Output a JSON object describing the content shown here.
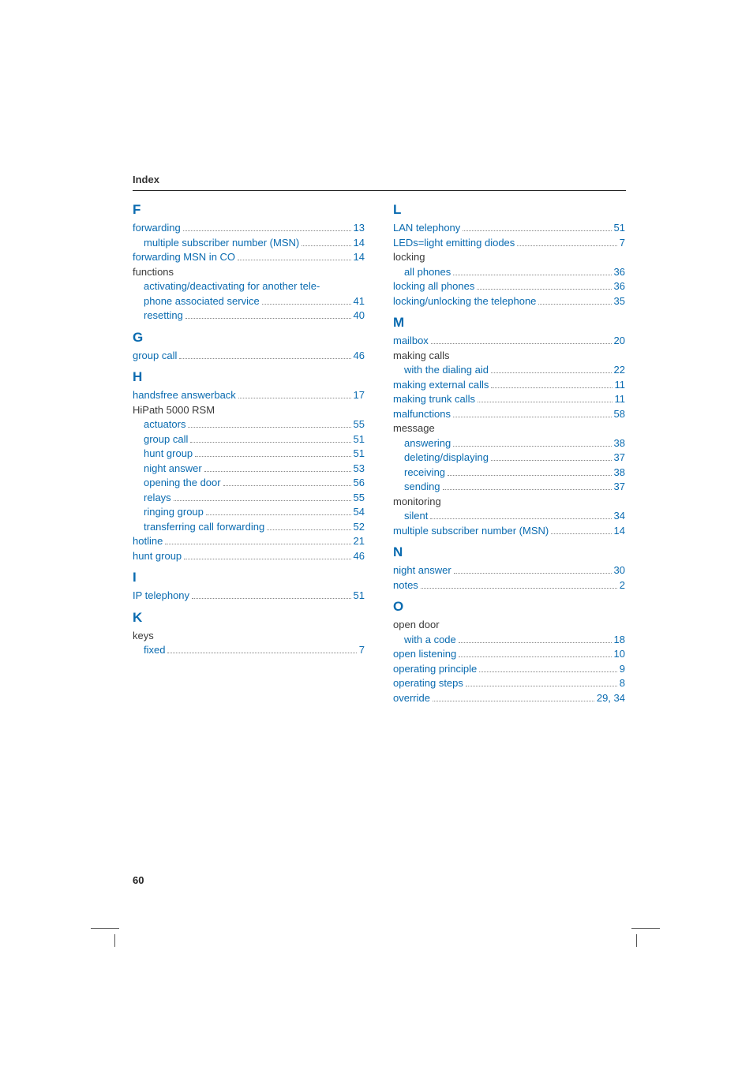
{
  "header": {
    "title": "Index"
  },
  "page_number": "60",
  "colors": {
    "accent": "#0a6bb0",
    "text": "#3a3a3a",
    "rule": "#222222",
    "dots": "#888888",
    "background": "#ffffff"
  },
  "typography": {
    "body_fontsize_pt": 10,
    "letter_fontsize_pt": 13,
    "font_family": "Arial"
  },
  "left_sections": [
    {
      "letter": "F",
      "entries": [
        {
          "label": "forwarding",
          "page": "13",
          "link": true
        },
        {
          "label": "multiple subscriber number (MSN)",
          "page": "14",
          "sub": true,
          "link": true
        },
        {
          "label": "forwarding MSN in CO",
          "page": "14",
          "link": true
        },
        {
          "label": "functions",
          "nopage": true
        },
        {
          "label": "activating/deactivating for another telephone associated service",
          "page": "41",
          "sub": true,
          "wrap": true,
          "link": true
        },
        {
          "label": "resetting",
          "page": "40",
          "sub": true,
          "link": true
        }
      ]
    },
    {
      "letter": "G",
      "entries": [
        {
          "label": "group call",
          "page": "46",
          "link": true
        }
      ]
    },
    {
      "letter": "H",
      "entries": [
        {
          "label": "handsfree answerback",
          "page": "17",
          "link": true
        },
        {
          "label": "HiPath 5000 RSM",
          "nopage": true
        },
        {
          "label": "actuators",
          "page": "55",
          "sub": true,
          "link": true
        },
        {
          "label": "group call",
          "page": "51",
          "sub": true,
          "link": true
        },
        {
          "label": "hunt group",
          "page": "51",
          "sub": true,
          "link": true
        },
        {
          "label": "night answer",
          "page": "53",
          "sub": true,
          "link": true
        },
        {
          "label": "opening the door",
          "page": "56",
          "sub": true,
          "link": true
        },
        {
          "label": "relays",
          "page": "55",
          "sub": true,
          "link": true
        },
        {
          "label": "ringing group",
          "page": "54",
          "sub": true,
          "link": true
        },
        {
          "label": "transferring call forwarding",
          "page": "52",
          "sub": true,
          "link": true
        },
        {
          "label": "hotline",
          "page": "21",
          "link": true
        },
        {
          "label": "hunt group",
          "page": "46",
          "link": true
        }
      ]
    },
    {
      "letter": "I",
      "entries": [
        {
          "label": "IP telephony",
          "page": "51",
          "link": true
        }
      ]
    },
    {
      "letter": "K",
      "entries": [
        {
          "label": "keys",
          "nopage": true
        },
        {
          "label": "fixed",
          "page": "7",
          "sub": true,
          "link": true
        }
      ]
    }
  ],
  "right_sections": [
    {
      "letter": "L",
      "entries": [
        {
          "label": "LAN telephony",
          "page": "51",
          "link": true
        },
        {
          "label": "LEDs=light emitting diodes",
          "page": "7",
          "link": true
        },
        {
          "label": "locking",
          "nopage": true
        },
        {
          "label": "all phones",
          "page": "36",
          "sub": true,
          "link": true
        },
        {
          "label": "locking all phones",
          "page": "36",
          "link": true
        },
        {
          "label": "locking/unlocking the telephone",
          "page": "35",
          "link": true
        }
      ]
    },
    {
      "letter": "M",
      "entries": [
        {
          "label": "mailbox",
          "page": "20",
          "link": true
        },
        {
          "label": "making calls",
          "nopage": true
        },
        {
          "label": "with the dialing aid",
          "page": "22",
          "sub": true,
          "link": true
        },
        {
          "label": "making external calls",
          "page": "11",
          "link": true
        },
        {
          "label": "making trunk calls",
          "page": "11",
          "link": true
        },
        {
          "label": "malfunctions",
          "page": "58",
          "link": true
        },
        {
          "label": "message",
          "nopage": true
        },
        {
          "label": "answering",
          "page": "38",
          "sub": true,
          "link": true
        },
        {
          "label": "deleting/displaying",
          "page": "37",
          "sub": true,
          "link": true
        },
        {
          "label": "receiving",
          "page": "38",
          "sub": true,
          "link": true
        },
        {
          "label": "sending",
          "page": "37",
          "sub": true,
          "link": true
        },
        {
          "label": "monitoring",
          "nopage": true
        },
        {
          "label": "silent",
          "page": "34",
          "sub": true,
          "link": true
        },
        {
          "label": "multiple subscriber number (MSN)",
          "page": "14",
          "link": true
        }
      ]
    },
    {
      "letter": "N",
      "entries": [
        {
          "label": "night answer",
          "page": "30",
          "link": true
        },
        {
          "label": "notes",
          "page": "2",
          "link": true
        }
      ]
    },
    {
      "letter": "O",
      "entries": [
        {
          "label": "open door",
          "nopage": true
        },
        {
          "label": "with a code",
          "page": "18",
          "sub": true,
          "link": true
        },
        {
          "label": "open listening",
          "page": "10",
          "link": true
        },
        {
          "label": "operating principle",
          "page": "9",
          "link": true
        },
        {
          "label": "operating steps",
          "page": "8",
          "link": true
        },
        {
          "label": "override",
          "page": "29, 34",
          "link": true
        }
      ]
    }
  ]
}
